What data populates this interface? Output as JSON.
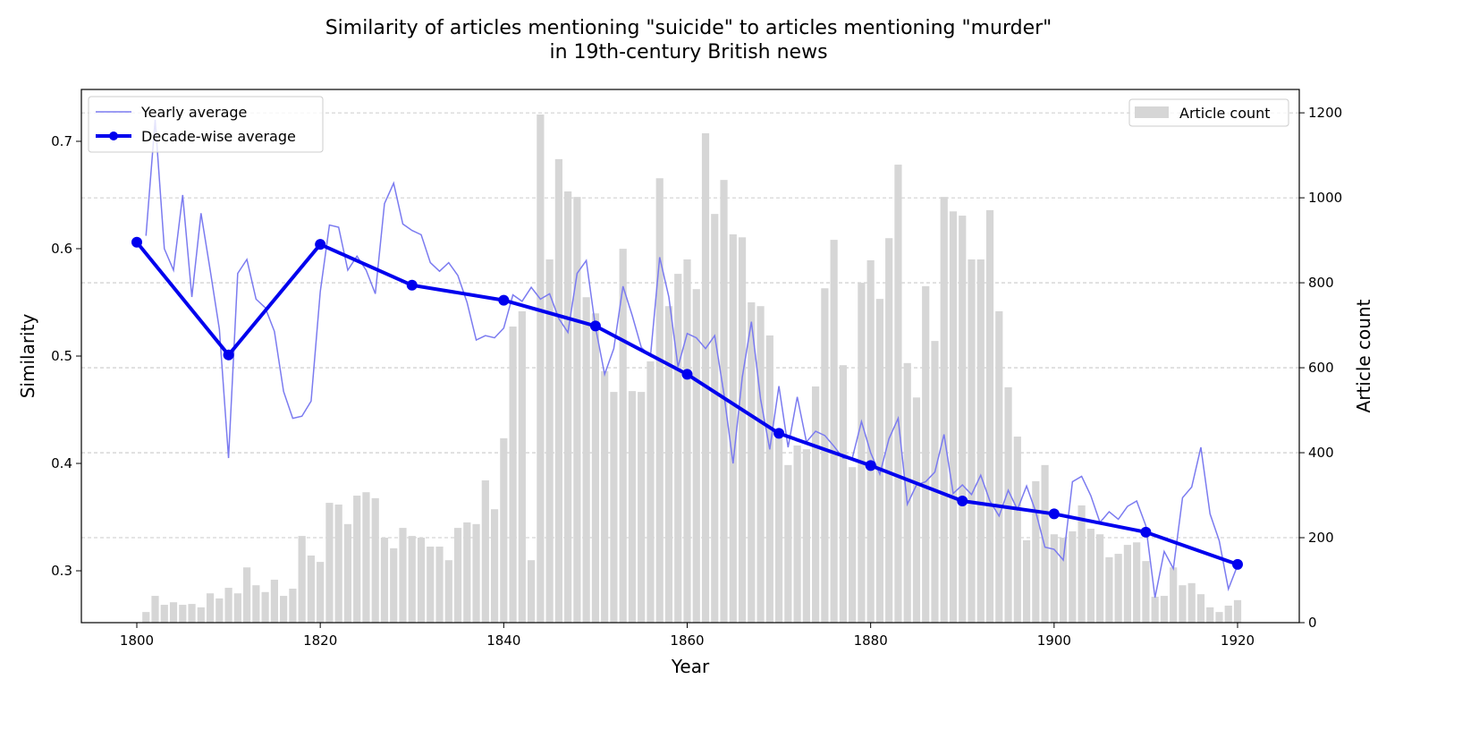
{
  "chart_data": {
    "type": "bar+line",
    "title": [
      "Similarity of articles mentioning \"suicide\" to articles mentioning \"murder\"",
      "in 19th-century British news"
    ],
    "xlabel": "Year",
    "ylabel": "Similarity",
    "y2label": "Article count",
    "xlim": [
      1791,
      1926
    ],
    "ylim": [
      0.2517,
      0.7483
    ],
    "y2lim": [
      0,
      1255
    ],
    "xticks": [
      1800,
      1820,
      1840,
      1860,
      1880,
      1900,
      1920
    ],
    "yticks": [
      0.3,
      0.4,
      0.5,
      0.6,
      0.7
    ],
    "y2ticks": [
      0,
      200,
      400,
      600,
      800,
      1000,
      1200
    ],
    "grid": "dashed horizontal at right-axis ticks",
    "colors": {
      "yearly": "#7b7bf0",
      "decade": "#0000ee",
      "bars": "#d6d6d6"
    },
    "legend_left": {
      "placement": "top-left",
      "entries": [
        "Yearly average",
        "Decade-wise average"
      ]
    },
    "legend_right": {
      "placement": "top-right",
      "entries": [
        "Article count"
      ]
    },
    "bars": {
      "name": "Article count",
      "start_year": 1801,
      "values": [
        25,
        63,
        42,
        48,
        42,
        44,
        36,
        69,
        57,
        82,
        69,
        130,
        88,
        72,
        101,
        63,
        80,
        204,
        158,
        143,
        282,
        278,
        232,
        299,
        307,
        293,
        200,
        175,
        223,
        204,
        200,
        179,
        179,
        147,
        223,
        236,
        232,
        335,
        267,
        434,
        697,
        733,
        147,
        1196,
        855,
        1091,
        1015,
        1002,
        766,
        728,
        592,
        543,
        880,
        545,
        543,
        615,
        1046,
        745,
        821,
        855,
        785,
        1152,
        962,
        1042,
        914,
        907,
        754,
        745,
        676,
        455,
        371,
        417,
        408,
        556,
        787,
        901,
        606,
        366,
        800,
        853,
        762,
        905,
        1078,
        611,
        530,
        792,
        663,
        1002,
        968,
        958,
        855,
        855,
        971,
        733,
        554,
        438,
        194,
        333,
        371,
        208,
        200,
        215,
        276,
        221,
        208,
        154,
        162,
        183,
        189,
        145,
        61,
        63,
        130,
        88,
        93,
        67,
        36,
        25,
        40,
        53
      ]
    },
    "yearly": {
      "name": "Yearly average",
      "start_year": 1801,
      "values": [
        0.612,
        0.72,
        0.6,
        0.58,
        0.65,
        0.555,
        0.633,
        0.58,
        0.525,
        0.405,
        0.577,
        0.59,
        0.553,
        0.545,
        0.523,
        0.467,
        0.442,
        0.444,
        0.458,
        0.56,
        0.622,
        0.62,
        0.58,
        0.593,
        0.58,
        0.558,
        0.642,
        0.661,
        0.623,
        0.617,
        0.613,
        0.587,
        0.579,
        0.587,
        0.575,
        0.55,
        0.515,
        0.519,
        0.517,
        0.526,
        0.557,
        0.551,
        0.564,
        0.553,
        0.558,
        0.535,
        0.522,
        0.577,
        0.589,
        0.527,
        0.483,
        0.507,
        0.565,
        0.538,
        0.508,
        0.5,
        0.592,
        0.555,
        0.49,
        0.521,
        0.517,
        0.507,
        0.519,
        0.465,
        0.4,
        0.48,
        0.532,
        0.46,
        0.413,
        0.472,
        0.415,
        0.462,
        0.42,
        0.43,
        0.426,
        0.416,
        0.405,
        0.405,
        0.439,
        0.41,
        0.39,
        0.423,
        0.442,
        0.362,
        0.38,
        0.383,
        0.392,
        0.427,
        0.372,
        0.38,
        0.371,
        0.389,
        0.365,
        0.351,
        0.375,
        0.357,
        0.379,
        0.355,
        0.322,
        0.32,
        0.31,
        0.383,
        0.388,
        0.37,
        0.345,
        0.355,
        0.348,
        0.36,
        0.365,
        0.342,
        0.275,
        0.318,
        0.302,
        0.368,
        0.378,
        0.415,
        0.353,
        0.328,
        0.283,
        0.305
      ]
    },
    "decade": {
      "name": "Decade-wise average",
      "x": [
        1800,
        1810,
        1820,
        1830,
        1840,
        1850,
        1860,
        1870,
        1880,
        1890,
        1900,
        1910,
        1920
      ],
      "values": [
        0.606,
        0.501,
        0.604,
        0.566,
        0.552,
        0.528,
        0.483,
        0.428,
        0.398,
        0.365,
        0.353,
        0.336,
        0.306
      ]
    }
  }
}
